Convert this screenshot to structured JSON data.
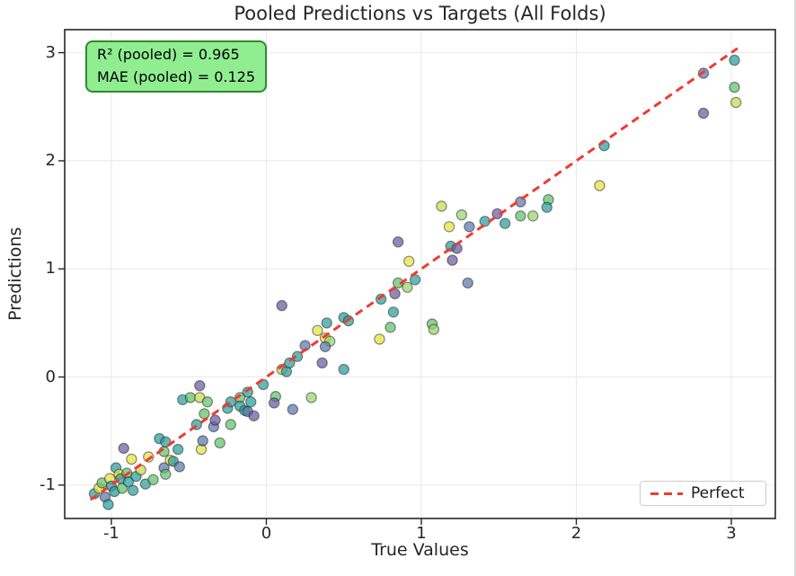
{
  "chart_data": {
    "type": "scatter",
    "title": "Pooled Predictions vs Targets (All Folds)",
    "xlabel": "True Values",
    "ylabel": "Predictions",
    "xlim": [
      -1.301,
      3.284
    ],
    "ylim": [
      -1.309,
      3.213
    ],
    "x_ticks": [
      -1,
      0,
      1,
      2,
      3
    ],
    "y_ticks": [
      -1,
      0,
      1,
      2,
      3
    ],
    "grid": true,
    "r2_pooled": 0.965,
    "mae_pooled": 0.125,
    "reference_line": {
      "label": "Perfect",
      "style": "dashed",
      "color": "#ee3b33",
      "x_start": -1.135,
      "y_start": -1.135,
      "x_end": 3.04,
      "y_end": 3.04
    },
    "legend_position": "lower right",
    "palette": {
      "purple": "#6a5a9e",
      "blue": "#5b76aa",
      "teal": "#2a9d9b",
      "green": "#5fc06a",
      "lightgreen": "#9ad36e",
      "yellowgreen": "#c6d94b",
      "yellow": "#e6e23f"
    },
    "marker": {
      "radius": 5.6,
      "fill_opacity": 0.72,
      "edge_color": "#1f1f1f",
      "edge_opacity": 0.5
    },
    "points": [
      [
        -1.11,
        -1.08,
        "teal"
      ],
      [
        -1.08,
        -1.03,
        "yellow"
      ],
      [
        -1.06,
        -0.98,
        "green"
      ],
      [
        -1.04,
        -1.11,
        "blue"
      ],
      [
        -1.02,
        -1.18,
        "teal"
      ],
      [
        -1.01,
        -0.94,
        "yellow"
      ],
      [
        -1.0,
        -1.01,
        "teal"
      ],
      [
        -0.98,
        -1.06,
        "teal"
      ],
      [
        -0.97,
        -0.84,
        "teal"
      ],
      [
        -0.95,
        -0.9,
        "yellow"
      ],
      [
        -0.94,
        -0.94,
        "teal"
      ],
      [
        -0.93,
        -1.03,
        "green"
      ],
      [
        -0.92,
        -0.66,
        "purple"
      ],
      [
        -0.9,
        -0.89,
        "green"
      ],
      [
        -0.89,
        -0.97,
        "teal"
      ],
      [
        -0.87,
        -0.76,
        "yellow"
      ],
      [
        -0.86,
        -1.05,
        "teal"
      ],
      [
        -0.84,
        -0.92,
        "teal"
      ],
      [
        -0.81,
        -0.86,
        "yellowgreen"
      ],
      [
        -0.78,
        -0.99,
        "teal"
      ],
      [
        -0.76,
        -0.74,
        "yellow"
      ],
      [
        -0.73,
        -0.95,
        "green"
      ],
      [
        -0.69,
        -0.57,
        "teal"
      ],
      [
        -0.66,
        -0.84,
        "blue"
      ],
      [
        -0.66,
        -0.69,
        "green"
      ],
      [
        -0.65,
        -0.9,
        "green"
      ],
      [
        -0.65,
        -0.6,
        "teal"
      ],
      [
        -0.62,
        -0.77,
        "yellow"
      ],
      [
        -0.6,
        -0.78,
        "teal"
      ],
      [
        -0.57,
        -0.67,
        "teal"
      ],
      [
        -0.56,
        -0.83,
        "blue"
      ],
      [
        -0.54,
        -0.21,
        "teal"
      ],
      [
        -0.49,
        -0.19,
        "green"
      ],
      [
        -0.45,
        -0.44,
        "teal"
      ],
      [
        -0.43,
        -0.19,
        "yellowgreen"
      ],
      [
        -0.43,
        -0.08,
        "purple"
      ],
      [
        -0.42,
        -0.67,
        "yellow"
      ],
      [
        -0.41,
        -0.59,
        "blue"
      ],
      [
        -0.4,
        -0.34,
        "green"
      ],
      [
        -0.38,
        -0.23,
        "green"
      ],
      [
        -0.34,
        -0.46,
        "blue"
      ],
      [
        -0.33,
        -0.4,
        "purple"
      ],
      [
        -0.3,
        -0.61,
        "green"
      ],
      [
        -0.25,
        -0.29,
        "teal"
      ],
      [
        -0.23,
        -0.23,
        "teal"
      ],
      [
        -0.23,
        -0.44,
        "green"
      ],
      [
        -0.17,
        -0.19,
        "green"
      ],
      [
        -0.17,
        -0.27,
        "teal"
      ],
      [
        -0.14,
        -0.31,
        "teal"
      ],
      [
        -0.12,
        -0.14,
        "teal"
      ],
      [
        -0.12,
        -0.32,
        "blue"
      ],
      [
        -0.1,
        -0.23,
        "teal"
      ],
      [
        -0.08,
        -0.36,
        "purple"
      ],
      [
        -0.02,
        -0.07,
        "teal"
      ],
      [
        0.06,
        -0.18,
        "green"
      ],
      [
        0.05,
        -0.24,
        "purple"
      ],
      [
        0.1,
        0.07,
        "yellowgreen"
      ],
      [
        0.13,
        0.05,
        "teal"
      ],
      [
        0.15,
        0.13,
        "teal"
      ],
      [
        0.1,
        0.66,
        "purple"
      ],
      [
        0.17,
        -0.3,
        "blue"
      ],
      [
        0.2,
        0.19,
        "teal"
      ],
      [
        0.25,
        0.29,
        "blue"
      ],
      [
        0.29,
        -0.19,
        "lightgreen"
      ],
      [
        0.33,
        0.43,
        "yellow"
      ],
      [
        0.36,
        0.13,
        "purple"
      ],
      [
        0.38,
        0.36,
        "yellow"
      ],
      [
        0.41,
        0.33,
        "lightgreen"
      ],
      [
        0.38,
        0.28,
        "blue"
      ],
      [
        0.39,
        0.5,
        "teal"
      ],
      [
        0.5,
        0.55,
        "teal"
      ],
      [
        0.53,
        0.52,
        "teal"
      ],
      [
        0.5,
        0.07,
        "teal"
      ],
      [
        0.74,
        0.72,
        "teal"
      ],
      [
        0.73,
        0.35,
        "yellow"
      ],
      [
        0.8,
        0.46,
        "green"
      ],
      [
        0.82,
        0.6,
        "teal"
      ],
      [
        0.83,
        0.77,
        "purple"
      ],
      [
        0.85,
        0.87,
        "green"
      ],
      [
        0.91,
        0.83,
        "lightgreen"
      ],
      [
        0.96,
        0.9,
        "teal"
      ],
      [
        0.85,
        1.25,
        "purple"
      ],
      [
        0.92,
        1.07,
        "yellow"
      ],
      [
        1.07,
        0.49,
        "green"
      ],
      [
        1.08,
        0.44,
        "lightgreen"
      ],
      [
        1.13,
        1.58,
        "yellowgreen"
      ],
      [
        1.26,
        1.5,
        "lightgreen"
      ],
      [
        1.18,
        1.39,
        "yellow"
      ],
      [
        1.31,
        1.39,
        "blue"
      ],
      [
        1.19,
        1.21,
        "teal"
      ],
      [
        1.23,
        1.19,
        "purple"
      ],
      [
        1.2,
        1.08,
        "purple"
      ],
      [
        1.3,
        0.87,
        "blue"
      ],
      [
        1.41,
        1.44,
        "teal"
      ],
      [
        1.49,
        1.51,
        "purple"
      ],
      [
        1.54,
        1.42,
        "teal"
      ],
      [
        1.64,
        1.49,
        "green"
      ],
      [
        1.72,
        1.49,
        "lightgreen"
      ],
      [
        1.64,
        1.62,
        "blue"
      ],
      [
        1.82,
        1.64,
        "green"
      ],
      [
        1.81,
        1.57,
        "teal"
      ],
      [
        2.18,
        2.14,
        "teal"
      ],
      [
        2.15,
        1.77,
        "yellow"
      ],
      [
        2.82,
        2.81,
        "blue"
      ],
      [
        2.82,
        2.44,
        "purple"
      ],
      [
        3.02,
        2.93,
        "teal"
      ],
      [
        3.02,
        2.68,
        "green"
      ],
      [
        3.03,
        2.54,
        "yellowgreen"
      ]
    ]
  },
  "annotation": {
    "line1": "R² (pooled) = 0.965",
    "line2": "MAE (pooled) = 0.125",
    "bg_color": "#90ee90",
    "border_color": "#2e8b2e",
    "text_color": "#000000"
  },
  "legend": {
    "label": "Perfect",
    "line_color": "#ee3b33"
  },
  "style": {
    "grid_color": "#e8e8e8",
    "spine_color": "#262626",
    "background": "#ffffff"
  }
}
